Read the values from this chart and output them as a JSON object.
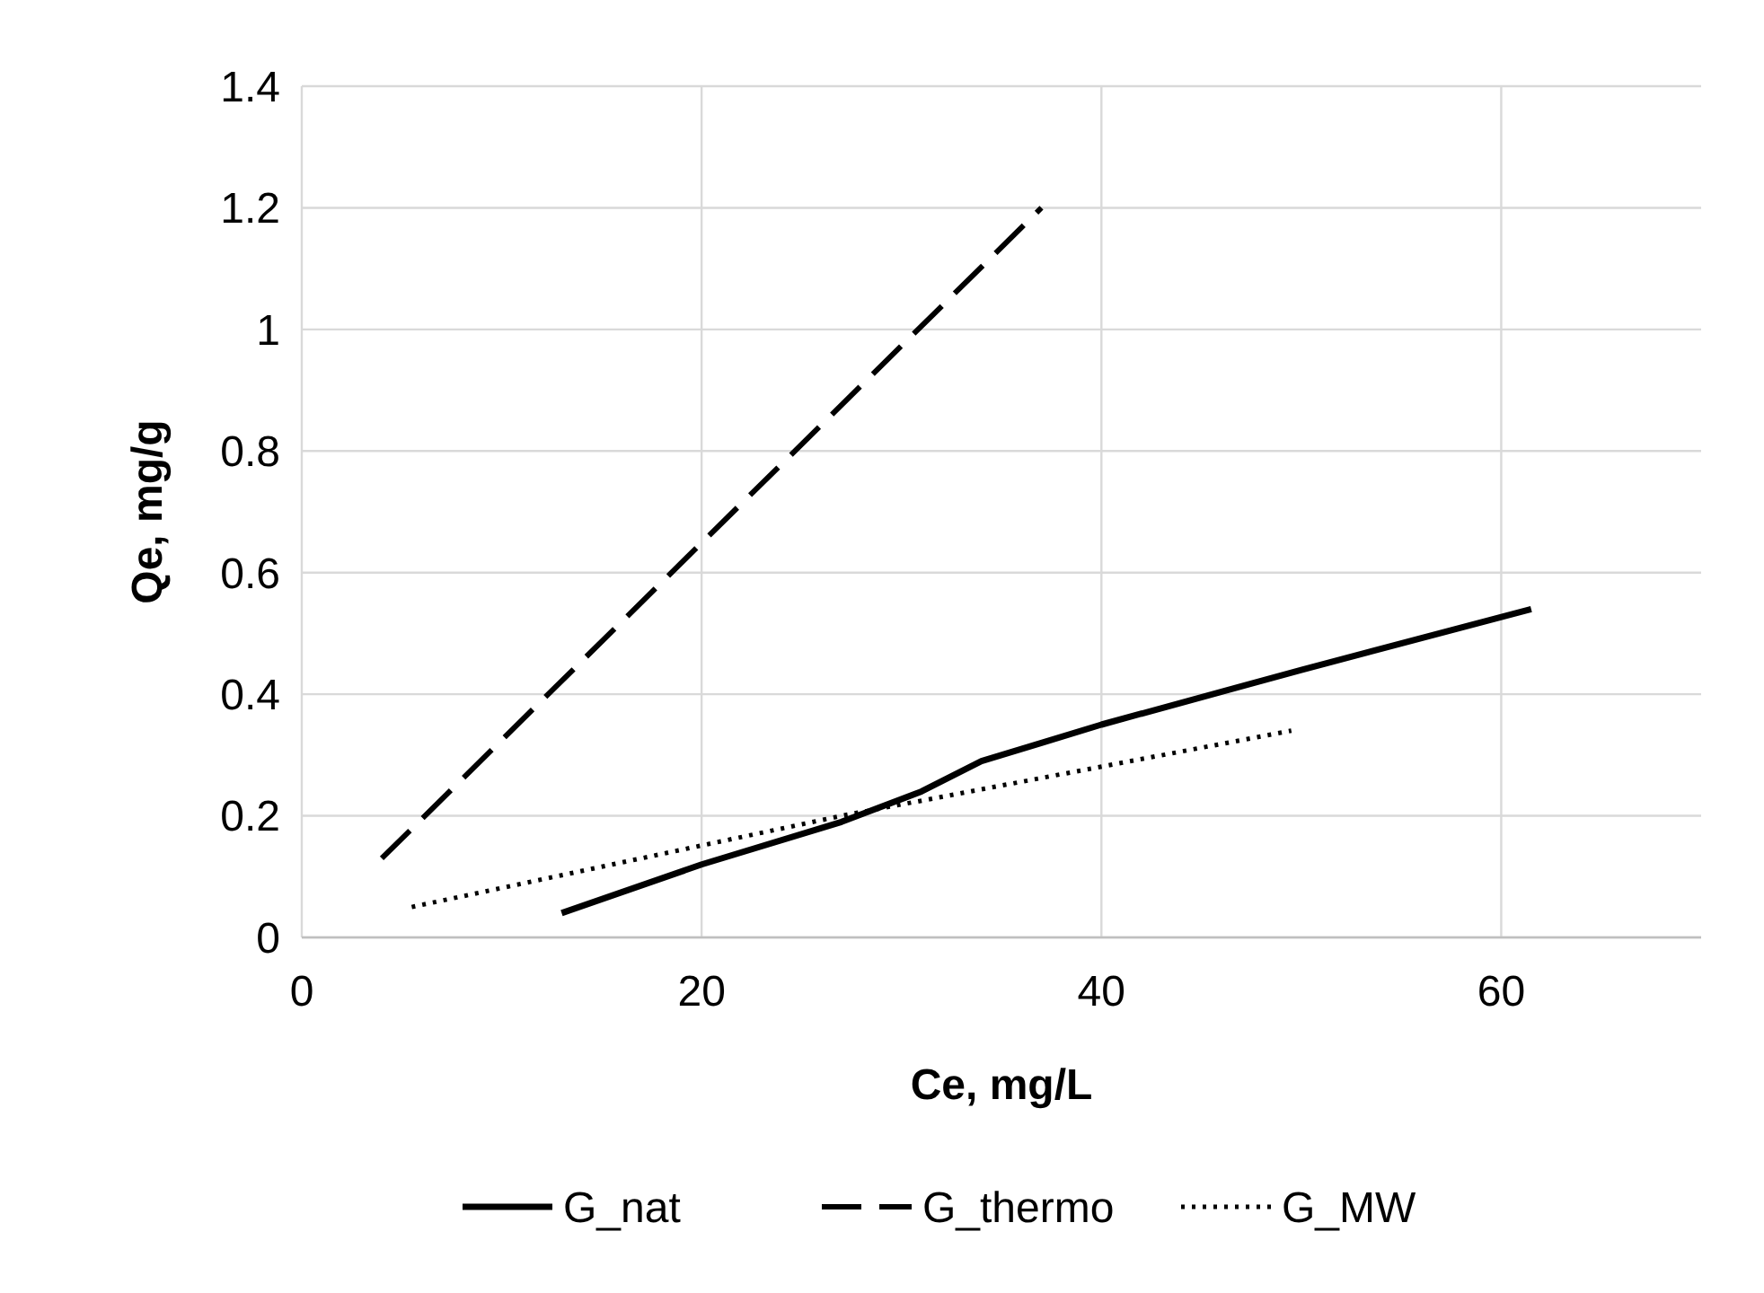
{
  "chart_data": {
    "type": "line",
    "xlabel": "Ce, mg/L",
    "ylabel": "Qe, mg/g",
    "xlim": [
      0,
      70
    ],
    "xticks": [
      0,
      20,
      40,
      60
    ],
    "ylim": [
      0,
      1.4
    ],
    "yticks": [
      0,
      0.2,
      0.4,
      0.6,
      0.8,
      1,
      1.2,
      1.4
    ],
    "grid": true,
    "legend": "bottom",
    "series": [
      {
        "name": "G_nat",
        "color": "#000000",
        "line_style": "solid",
        "x": [
          13,
          20,
          27,
          31,
          34,
          37,
          40,
          50,
          61.5
        ],
        "values": [
          0.04,
          0.12,
          0.19,
          0.24,
          0.29,
          0.32,
          0.35,
          0.44,
          0.54
        ]
      },
      {
        "name": "G_thermo",
        "color": "#000000",
        "line_style": "dashed",
        "x": [
          4,
          37
        ],
        "values": [
          0.13,
          1.2
        ]
      },
      {
        "name": "G_MW",
        "color": "#000000",
        "line_style": "dotted",
        "x": [
          5.5,
          27,
          49.5
        ],
        "values": [
          0.05,
          0.2,
          0.34
        ]
      }
    ]
  }
}
